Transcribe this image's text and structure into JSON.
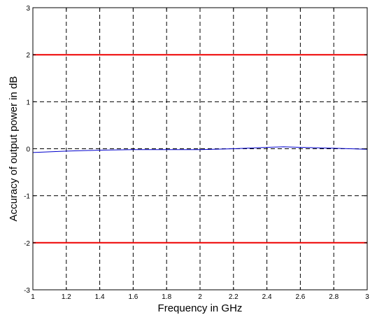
{
  "chart_data": {
    "type": "line",
    "xlabel": "Frequency in GHz",
    "ylabel": "Accuracy of output power in dB",
    "xlim": [
      1,
      3
    ],
    "ylim": [
      -3,
      3
    ],
    "x_ticks": [
      "1",
      "1.2",
      "1.4",
      "1.6",
      "1.8",
      "2",
      "2.2",
      "2.4",
      "2.6",
      "2.8",
      "3"
    ],
    "y_ticks": [
      "-3",
      "-2",
      "-1",
      "0",
      "1",
      "2",
      "3"
    ],
    "grid": true,
    "series": [
      {
        "color": "#0000cc",
        "x": [
          1.0,
          1.2,
          1.4,
          1.6,
          1.8,
          2.0,
          2.2,
          2.4,
          2.5,
          2.6,
          2.8,
          3.0
        ],
        "y": [
          -0.08,
          -0.05,
          -0.03,
          -0.02,
          -0.02,
          -0.02,
          0.0,
          0.03,
          0.04,
          0.03,
          0.01,
          -0.01
        ]
      },
      {
        "color": "#ee0000",
        "x": [
          1,
          3
        ],
        "y": [
          2,
          2
        ]
      },
      {
        "color": "#ee0000",
        "x": [
          1,
          3
        ],
        "y": [
          -2,
          -2
        ]
      }
    ]
  }
}
